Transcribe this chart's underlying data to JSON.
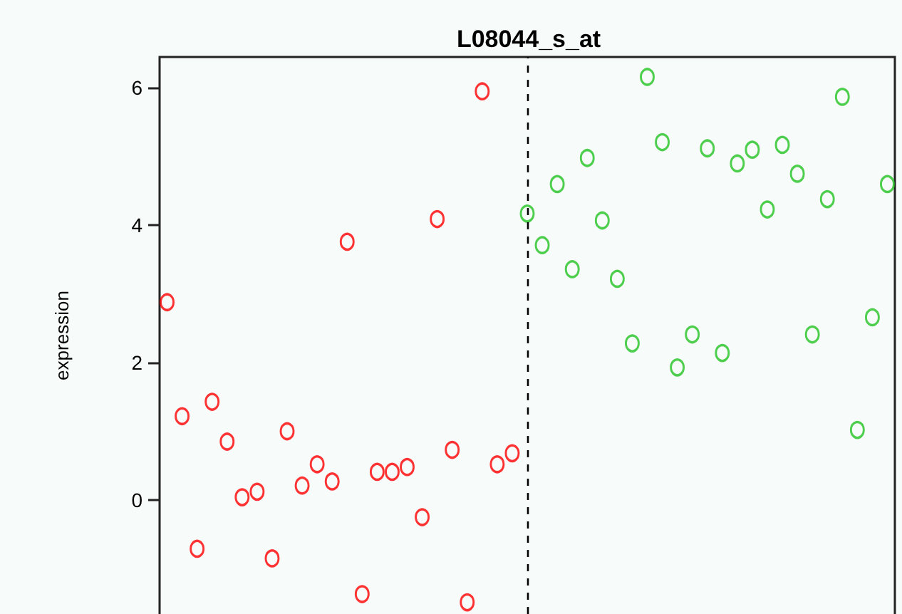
{
  "chart_data": {
    "type": "scatter",
    "title": "L08044_s_at",
    "ylabel": "expression",
    "grid": false,
    "tick_labels": "y",
    "categories": [
      null,
      null,
      null,
      null,
      null,
      null,
      null,
      null,
      null,
      null,
      null,
      null,
      null,
      null,
      null,
      null,
      null,
      null,
      null,
      null,
      null,
      null,
      null,
      null,
      null,
      null,
      null,
      null,
      null,
      null,
      null,
      null,
      null,
      null,
      null,
      null,
      null,
      null,
      null,
      null,
      null,
      null,
      null,
      null,
      null,
      null,
      null,
      null,
      null
    ],
    "ylim": [
      -1.66,
      6.45
    ],
    "yticks": [
      0,
      2,
      4,
      6
    ],
    "series": [
      {
        "color": "#ff0000",
        "values": [
          2.88,
          1.22,
          -0.71,
          1.43,
          0.85,
          0.04,
          0.12,
          -0.85,
          1.0,
          0.21,
          0.52,
          0.27,
          3.76,
          -1.37,
          0.41,
          0.41,
          0.48,
          -0.25,
          4.09,
          0.73,
          -1.49,
          5.95,
          0.52,
          0.68,
          null,
          null,
          null,
          null,
          null,
          null,
          null,
          null,
          null,
          null,
          null,
          null,
          null,
          null,
          null,
          null,
          null,
          null,
          null,
          null,
          null,
          null,
          null,
          null,
          null
        ]
      },
      {
        "color": "#22c322",
        "values": [
          null,
          null,
          null,
          null,
          null,
          null,
          null,
          null,
          null,
          null,
          null,
          null,
          null,
          null,
          null,
          null,
          null,
          null,
          null,
          null,
          null,
          null,
          null,
          null,
          4.17,
          3.71,
          4.6,
          3.36,
          4.98,
          4.07,
          3.22,
          2.28,
          6.16,
          5.21,
          1.93,
          2.41,
          5.12,
          2.14,
          4.9,
          5.1,
          4.23,
          5.17,
          4.75,
          2.41,
          4.38,
          5.87,
          1.02,
          2.66,
          4.6
        ]
      }
    ]
  }
}
